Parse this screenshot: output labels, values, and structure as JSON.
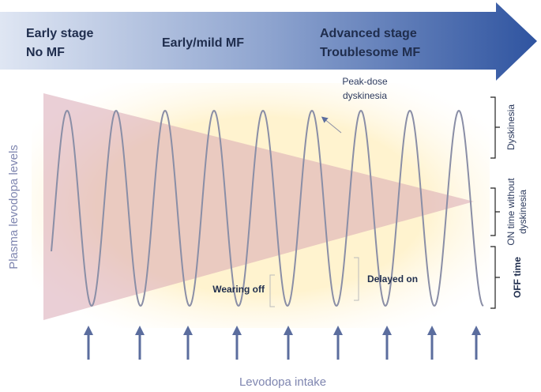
{
  "header": {
    "stages": [
      {
        "lines": [
          "Early stage",
          "No MF"
        ]
      },
      {
        "lines": [
          "Early/mild MF"
        ]
      },
      {
        "lines": [
          "Advanced stage",
          "Troublesome MF"
        ]
      }
    ]
  },
  "y_label": "Plasma levodopa levels",
  "x_label": "Levodopa intake",
  "annotations": {
    "peak_dose": [
      "Peak-dose",
      "dyskinesia"
    ],
    "wearing_off": "Wearing off",
    "delayed_on": "Delayed on"
  },
  "zones": {
    "dyskinesia": "Dyskinesia",
    "on_time": [
      "ON time without",
      "dyskinesia"
    ],
    "off_time": "OFF time"
  }
}
